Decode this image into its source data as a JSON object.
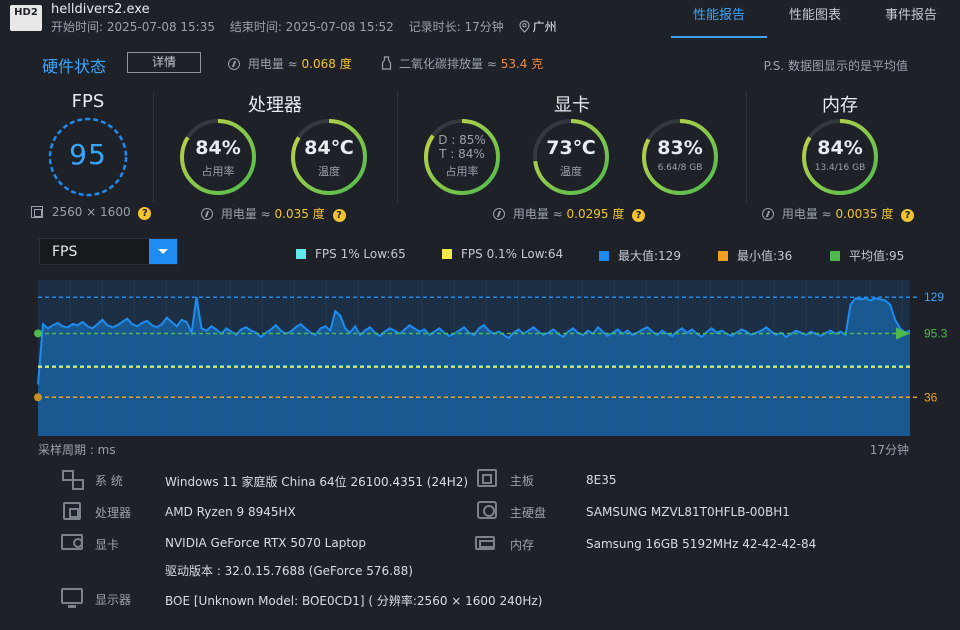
{
  "header": {
    "logo": "HD2",
    "exe": "helldivers2.exe",
    "start": "开始时间: 2025-07-08 15:35",
    "end": "结束时间: 2025-07-08 15:52",
    "duration": "记录时长: 17分钟",
    "location": "广州",
    "tabs": [
      "性能报告",
      "性能图表",
      "事件报告"
    ],
    "active_tab": "性能报告"
  },
  "status": {
    "title": "硬件状态",
    "detail_button": "详情",
    "power_label": "用电量 ≈",
    "power_value": "0.068 度",
    "co2_label": "二氧化碳排放量 ≈",
    "co2_value": "53.4 克",
    "note": "P.S. 数据图显示的是平均值"
  },
  "fps_panel": {
    "title": "FPS",
    "value": "95",
    "resolution": "2560 × 1600"
  },
  "cpu_panel": {
    "title": "处理器",
    "usage": "84%",
    "usage_label": "占用率",
    "usage_fraction": 0.84,
    "temp": "84℃",
    "temp_label": "温度",
    "temp_fraction": 0.84,
    "power_label": "用电量 ≈",
    "power_value": "0.035 度"
  },
  "gpu_panel": {
    "title": "显卡",
    "usage_d": "D : 85%",
    "usage_t": "T : 84%",
    "usage_label": "占用率",
    "usage_fraction": 0.85,
    "temp": "73℃",
    "temp_label": "温度",
    "temp_fraction": 0.73,
    "vram": "83%",
    "vram_detail": "6.64/8 GB",
    "vram_fraction": 0.83,
    "power_label": "用电量 ≈",
    "power_value": "0.0295 度"
  },
  "mem_panel": {
    "title": "内存",
    "usage": "84%",
    "detail": "13.4/16 GB",
    "usage_fraction": 0.84,
    "power_label": "用电量 ≈",
    "power_value": "0.0035 度"
  },
  "chart_controls": {
    "selected_metric": "FPS",
    "legend": [
      {
        "label": "FPS 1% Low:65",
        "color": "#5fe8e8"
      },
      {
        "label": "FPS 0.1% Low:64",
        "color": "#f4e84a"
      },
      {
        "label": "最大值:129",
        "color": "#1e8cf0"
      },
      {
        "label": "最小值:36",
        "color": "#f0a020"
      },
      {
        "label": "平均值:95",
        "color": "#4cba4c"
      }
    ],
    "x_label": "采样周期 : ms",
    "x_end_label": "17分钟"
  },
  "chart_data": {
    "type": "area",
    "xlabel": "采样周期 : ms",
    "x_end": "17分钟",
    "ylim": [
      0,
      145
    ],
    "max": 129,
    "min": 36,
    "avg": 95.3,
    "low1": 65,
    "low01": 64,
    "max_label": "129",
    "min_label": "36",
    "avg_label": "95.3",
    "series": [
      {
        "name": "FPS",
        "values": [
          48,
          104,
          100,
          103,
          105,
          102,
          101,
          104,
          103,
          106,
          102,
          100,
          104,
          108,
          103,
          101,
          103,
          106,
          109,
          104,
          102,
          105,
          107,
          103,
          101,
          104,
          110,
          106,
          102,
          108,
          106,
          96,
          129,
          100,
          98,
          102,
          99,
          95,
          100,
          97,
          94,
          99,
          101,
          98,
          96,
          92,
          96,
          99,
          103,
          98,
          95,
          97,
          101,
          104,
          100,
          96,
          94,
          100,
          102,
          98,
          116,
          112,
          100,
          96,
          102,
          94,
          98,
          101,
          96,
          93,
          97,
          100,
          98,
          95,
          99,
          103,
          100,
          97,
          99,
          94,
          97,
          100,
          96,
          93,
          95,
          98,
          101,
          96,
          94,
          100,
          103,
          98,
          95,
          97,
          94,
          91,
          96,
          99,
          95,
          98,
          101,
          97,
          94,
          96,
          99,
          95,
          92,
          97,
          100,
          96,
          94,
          98,
          95,
          101,
          97,
          93,
          96,
          99,
          95,
          98,
          94,
          96,
          99,
          101,
          97,
          94,
          98,
          95,
          93,
          97,
          100,
          96,
          99,
          95,
          92,
          97,
          100,
          96,
          98,
          95,
          93,
          96,
          99,
          97,
          94,
          96,
          98,
          101,
          97,
          94,
          96,
          92,
          95,
          98,
          96,
          94,
          97,
          95,
          93,
          96,
          98,
          95,
          97,
          94,
          122,
          128,
          127,
          128,
          126,
          128,
          127,
          126,
          122,
          108,
          100,
          96,
          98
        ]
      }
    ]
  },
  "specs": {
    "os_label": "系 统",
    "os_value": "Windows 11 家庭版 China 64位 26100.4351 (24H2)",
    "cpu_label": "处理器",
    "cpu_value": "AMD Ryzen 9 8945HX",
    "gpu_label": "显卡",
    "gpu_value": "NVIDIA GeForce RTX 5070 Laptop",
    "driver_value": "驱动版本 : 32.0.15.7688 (GeForce 576.88)",
    "board_label": "主板",
    "board_value": "8E35",
    "disk_label": "主硬盘",
    "disk_value": "SAMSUNG MZVL81T0HFLB-00BH1",
    "ram_label": "内存",
    "ram_value": "Samsung 16GB 5192MHz 42-42-42-84",
    "display_label": "显示器",
    "display_value": "BOE [Unknown Model: BOE0CD1] ( 分辨率:2560 × 1600 240Hz)"
  },
  "colors": {
    "accent": "#39a6ff",
    "gauge_green": "#4cba4c",
    "gauge_yellow": "#c8d44a",
    "value_yellow": "#f4c430",
    "value_orange": "#f08a3c"
  }
}
